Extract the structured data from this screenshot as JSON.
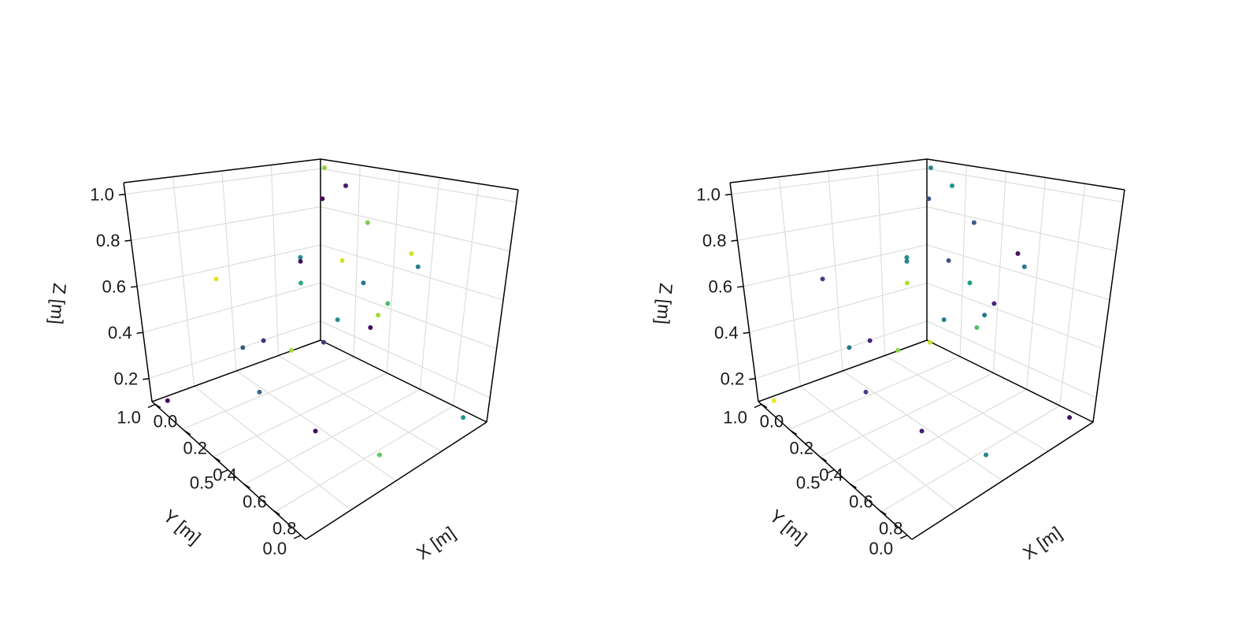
{
  "chart_data": [
    {
      "type": "scatter",
      "title": "",
      "xlabel": "X [m]",
      "ylabel": "Y [m]",
      "zlabel": "Z [m]",
      "xlim": [
        0,
        1
      ],
      "ylim": [
        0,
        1
      ],
      "zlim": [
        0.1,
        1.05
      ],
      "x_ticks": [
        "0.0",
        "0.2",
        "0.4",
        "0.6",
        "0.8"
      ],
      "y_ticks": [
        "0.0",
        "0.5",
        "1.0"
      ],
      "z_ticks": [
        "0.2",
        "0.4",
        "0.6",
        "0.8",
        "1.0"
      ],
      "grid": true,
      "colormap": "viridis",
      "points": [
        {
          "x": 0.06,
          "y": 0.04,
          "z": 1.02,
          "c": 0.82
        },
        {
          "x": 0.17,
          "y": 0.04,
          "z": 0.95,
          "c": 0.08
        },
        {
          "x": 0.28,
          "y": 0.03,
          "z": 0.79,
          "c": 0.8
        },
        {
          "x": 0.52,
          "y": 0.03,
          "z": 0.7,
          "c": 0.93
        },
        {
          "x": 0.56,
          "y": 0.03,
          "z": 0.65,
          "c": 0.45
        },
        {
          "x": 0.15,
          "y": 0.03,
          "z": 0.57,
          "c": 0.93
        },
        {
          "x": 0.26,
          "y": 0.02,
          "z": 0.49,
          "c": 0.4
        },
        {
          "x": 0.41,
          "y": 0.03,
          "z": 0.44,
          "c": 0.7
        },
        {
          "x": 0.36,
          "y": 0.03,
          "z": 0.37,
          "c": 0.86
        },
        {
          "x": 0.31,
          "y": 0.02,
          "z": 0.29,
          "c": 0.02
        },
        {
          "x": 0.05,
          "y": 0.04,
          "z": 0.86,
          "c": 0.02
        },
        {
          "x": 0.03,
          "y": 0.6,
          "z": 0.57,
          "c": 0.95
        },
        {
          "x": 0.02,
          "y": 0.13,
          "z": 0.57,
          "c": 0.5
        },
        {
          "x": 0.02,
          "y": 0.13,
          "z": 0.55,
          "c": 0.04
        },
        {
          "x": 0.02,
          "y": 0.13,
          "z": 0.44,
          "c": 0.62
        },
        {
          "x": 0.03,
          "y": 0.48,
          "z": 0.22,
          "c": 0.28
        },
        {
          "x": 0.03,
          "y": 0.36,
          "z": 0.22,
          "c": 0.15
        },
        {
          "x": 0.12,
          "y": 0.02,
          "z": 0.26,
          "c": 0.5
        },
        {
          "x": 0.09,
          "y": 0.07,
          "z": 0.15,
          "c": 0.16
        },
        {
          "x": 0.05,
          "y": 0.22,
          "z": 0.14,
          "c": 0.86
        },
        {
          "x": 0.92,
          "y": 0.06,
          "z": 0.12,
          "c": 0.52
        },
        {
          "x": 0.05,
          "y": 0.95,
          "z": 0.12,
          "c": 0.03
        },
        {
          "x": 0.2,
          "y": 0.55,
          "z": 0.12,
          "c": 0.34
        },
        {
          "x": 0.55,
          "y": 0.55,
          "z": 0.12,
          "c": 0.02
        },
        {
          "x": 0.85,
          "y": 0.46,
          "z": 0.12,
          "c": 0.74
        }
      ]
    },
    {
      "type": "scatter",
      "title": "",
      "xlabel": "X [m]",
      "ylabel": "Y [m]",
      "zlabel": "Z [m]",
      "xlim": [
        0,
        1
      ],
      "ylim": [
        0,
        1
      ],
      "zlim": [
        0.1,
        1.05
      ],
      "x_ticks": [
        "0.0",
        "0.2",
        "0.4",
        "0.6",
        "0.8"
      ],
      "y_ticks": [
        "0.0",
        "0.5",
        "1.0"
      ],
      "z_ticks": [
        "0.2",
        "0.4",
        "0.6",
        "0.8",
        "1.0"
      ],
      "grid": true,
      "colormap": "viridis",
      "points": [
        {
          "x": 0.06,
          "y": 0.04,
          "z": 1.02,
          "c": 0.48
        },
        {
          "x": 0.17,
          "y": 0.04,
          "z": 0.95,
          "c": 0.52
        },
        {
          "x": 0.28,
          "y": 0.03,
          "z": 0.79,
          "c": 0.28
        },
        {
          "x": 0.52,
          "y": 0.03,
          "z": 0.7,
          "c": 0.05
        },
        {
          "x": 0.56,
          "y": 0.03,
          "z": 0.65,
          "c": 0.4
        },
        {
          "x": 0.15,
          "y": 0.03,
          "z": 0.57,
          "c": 0.25
        },
        {
          "x": 0.26,
          "y": 0.02,
          "z": 0.49,
          "c": 0.55
        },
        {
          "x": 0.41,
          "y": 0.03,
          "z": 0.44,
          "c": 0.1
        },
        {
          "x": 0.36,
          "y": 0.03,
          "z": 0.37,
          "c": 0.4
        },
        {
          "x": 0.31,
          "y": 0.02,
          "z": 0.29,
          "c": 0.72
        },
        {
          "x": 0.05,
          "y": 0.04,
          "z": 0.86,
          "c": 0.25
        },
        {
          "x": 0.03,
          "y": 0.6,
          "z": 0.57,
          "c": 0.18
        },
        {
          "x": 0.02,
          "y": 0.13,
          "z": 0.57,
          "c": 0.5
        },
        {
          "x": 0.02,
          "y": 0.13,
          "z": 0.55,
          "c": 0.45
        },
        {
          "x": 0.02,
          "y": 0.13,
          "z": 0.44,
          "c": 0.88
        },
        {
          "x": 0.03,
          "y": 0.48,
          "z": 0.22,
          "c": 0.4
        },
        {
          "x": 0.03,
          "y": 0.36,
          "z": 0.22,
          "c": 0.1
        },
        {
          "x": 0.12,
          "y": 0.02,
          "z": 0.26,
          "c": 0.42
        },
        {
          "x": 0.09,
          "y": 0.07,
          "z": 0.15,
          "c": 0.92
        },
        {
          "x": 0.05,
          "y": 0.22,
          "z": 0.14,
          "c": 0.82
        },
        {
          "x": 0.92,
          "y": 0.06,
          "z": 0.12,
          "c": 0.05
        },
        {
          "x": 0.05,
          "y": 0.95,
          "z": 0.12,
          "c": 0.97
        },
        {
          "x": 0.2,
          "y": 0.55,
          "z": 0.12,
          "c": 0.2
        },
        {
          "x": 0.55,
          "y": 0.55,
          "z": 0.12,
          "c": 0.08
        },
        {
          "x": 0.85,
          "y": 0.46,
          "z": 0.12,
          "c": 0.45
        }
      ]
    }
  ]
}
